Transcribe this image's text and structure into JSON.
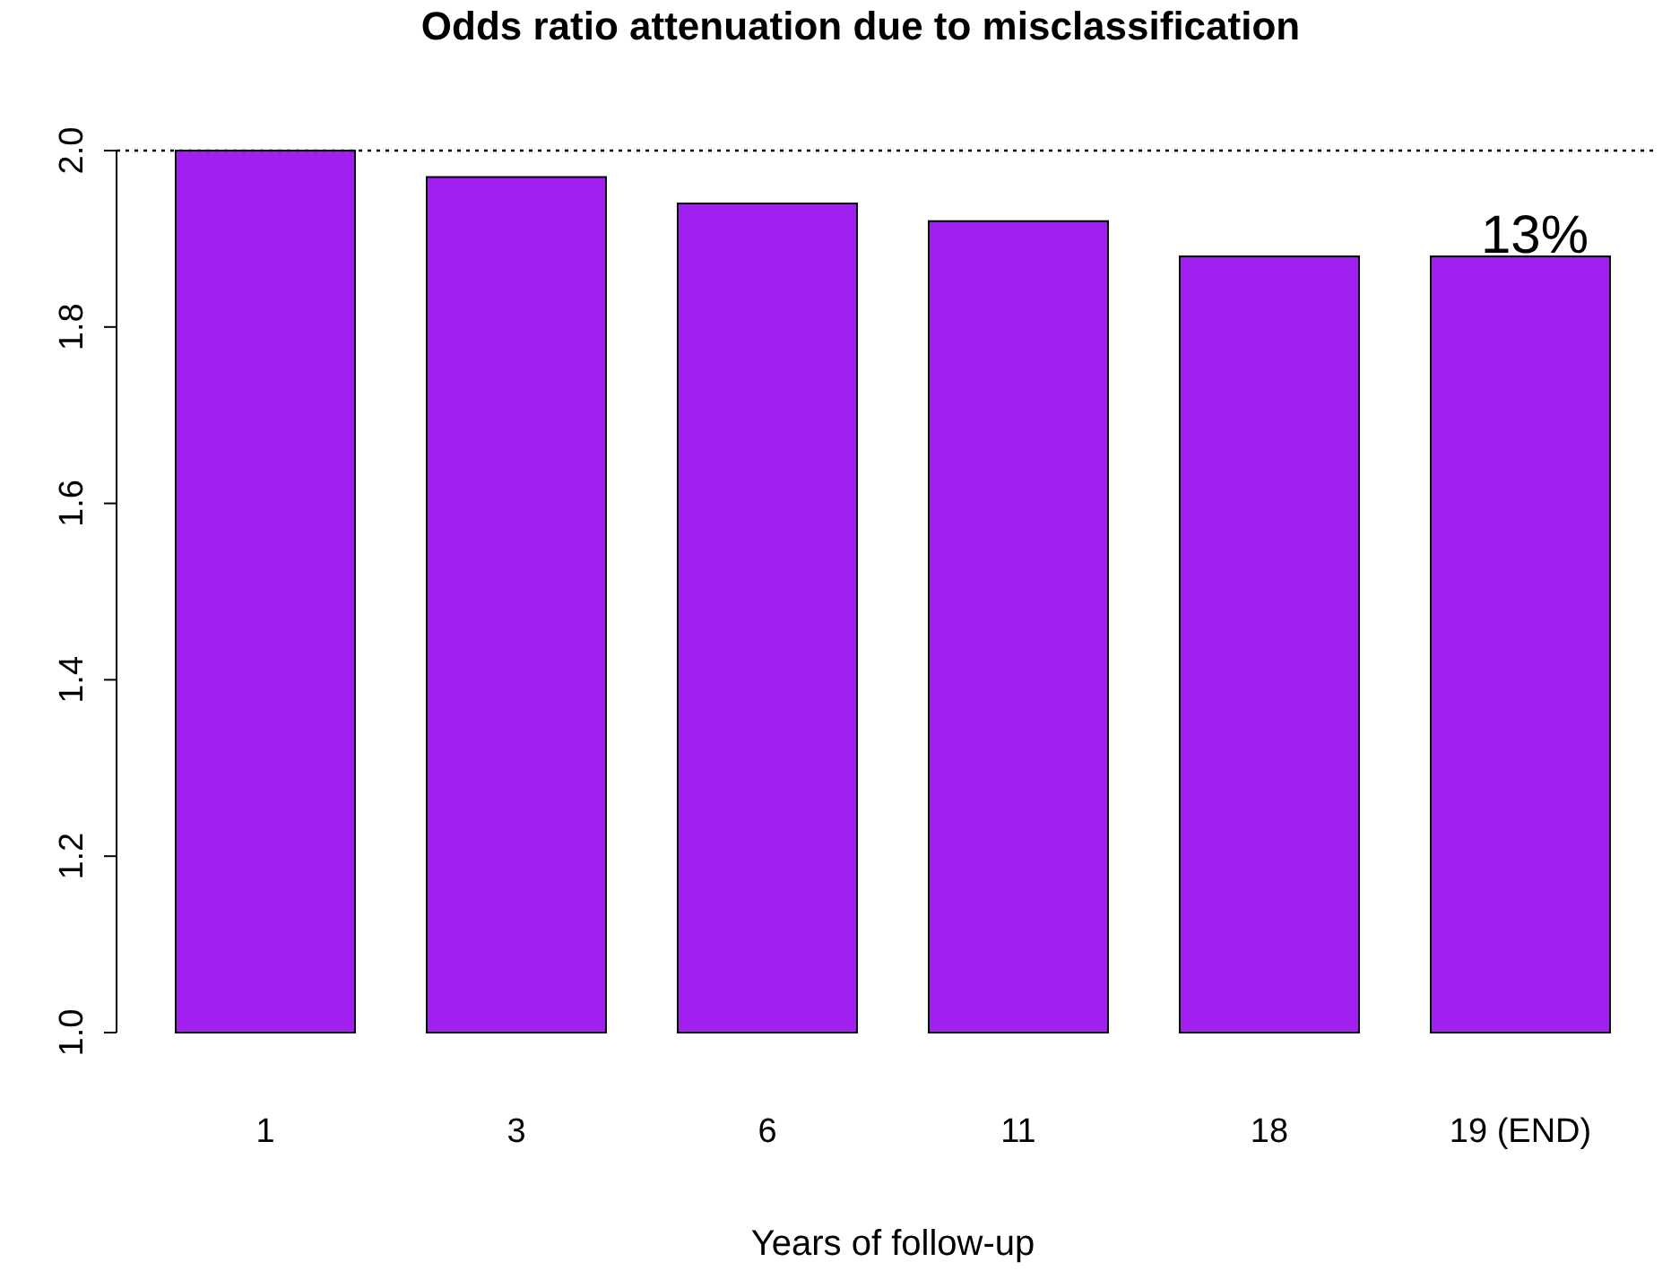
{
  "chart_data": {
    "type": "bar",
    "title": "Odds ratio attenuation due to misclassification",
    "xlabel": "Years of follow-up",
    "categories": [
      "1",
      "3",
      "6",
      "11",
      "18",
      "19 (END)"
    ],
    "values": [
      2.0,
      1.97,
      1.94,
      1.92,
      1.88,
      1.88
    ],
    "color": "#a020f0",
    "ylim": [
      1,
      2
    ],
    "yticks": [
      {
        "value": 1,
        "label": "1.0"
      },
      {
        "value": 1.2,
        "label": "1.2"
      },
      {
        "value": 1.4,
        "label": "1.4"
      },
      {
        "value": 1.6,
        "label": "1.6"
      },
      {
        "value": 1.8,
        "label": "1.8"
      },
      {
        "value": 2,
        "label": "2.0"
      }
    ],
    "ref_lines": [
      {
        "axis": "y",
        "value": 2,
        "line_style": "dotted"
      }
    ],
    "annotations": [
      {
        "text": "13%",
        "x": "19 (END)",
        "y": 1.88
      }
    ],
    "grid": false
  }
}
